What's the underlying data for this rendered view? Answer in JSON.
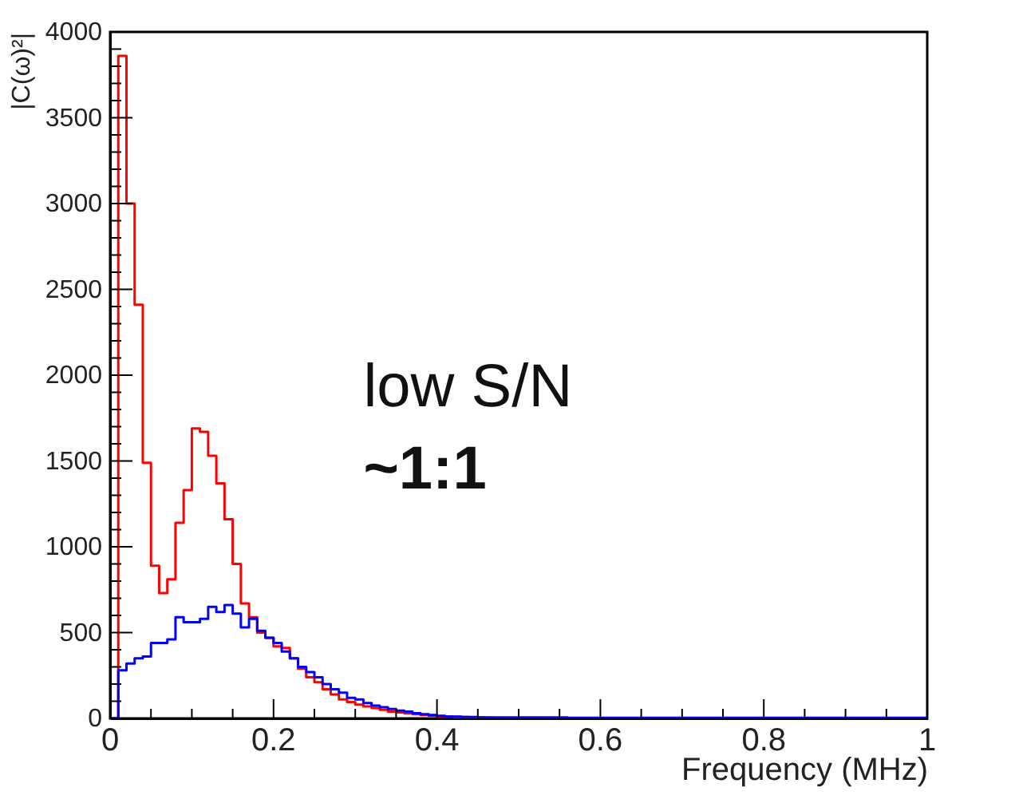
{
  "chart_data": {
    "type": "histogram",
    "xlabel": "Frequency (MHz)",
    "ylabel": "|C(ω)²|",
    "annotations": [
      "low S/N",
      "~1:1"
    ],
    "bins": [
      0,
      0.01,
      0.02,
      0.03,
      0.04,
      0.05,
      0.06,
      0.07,
      0.08,
      0.09,
      0.1,
      0.11,
      0.12,
      0.13,
      0.14,
      0.15,
      0.16,
      0.17,
      0.18,
      0.19,
      0.2,
      0.21,
      0.22,
      0.23,
      0.24,
      0.25,
      0.26,
      0.27,
      0.28,
      0.29,
      0.3,
      0.31,
      0.32,
      0.33,
      0.34,
      0.35,
      0.36,
      0.37,
      0.38,
      0.39,
      0.4,
      0.41,
      0.42,
      0.43,
      0.44,
      0.45,
      0.46,
      0.47,
      0.48,
      0.49,
      0.5,
      0.51,
      0.52,
      0.53,
      0.54,
      0.55,
      0.56,
      0.57,
      0.58,
      0.59,
      0.6,
      0.61,
      0.62,
      0.63,
      0.64,
      0.65,
      0.66,
      0.67,
      0.68,
      0.69,
      0.7,
      0.71,
      0.72,
      0.73,
      0.74,
      0.75,
      0.76,
      0.77,
      0.78,
      0.79,
      0.8,
      0.81,
      0.82,
      0.83,
      0.84,
      0.85,
      0.86,
      0.87,
      0.88,
      0.89,
      0.9,
      0.91,
      0.92,
      0.93,
      0.94,
      0.95,
      0.96,
      0.97,
      0.98,
      0.99,
      1
    ],
    "series": [
      {
        "color": "#ff0000",
        "values": [
          0,
          3860,
          3000,
          2410,
          1490,
          890,
          730,
          810,
          1140,
          1330,
          1690,
          1670,
          1530,
          1370,
          1160,
          900,
          670,
          590,
          500,
          470,
          420,
          410,
          350,
          290,
          240,
          210,
          170,
          140,
          110,
          95,
          80,
          70,
          60,
          50,
          40,
          35,
          30,
          25,
          20,
          15,
          12,
          10,
          8,
          8,
          7,
          6,
          6,
          5,
          5,
          5,
          5,
          5,
          5,
          5,
          5,
          5,
          0,
          0,
          0,
          0,
          0,
          0,
          0,
          0,
          0,
          0,
          0,
          0,
          0,
          0,
          0,
          0,
          0,
          0,
          0,
          0,
          0,
          0,
          0,
          0,
          0,
          0,
          0,
          0,
          0,
          0,
          0,
          0,
          0,
          0,
          0,
          0,
          0,
          0,
          0,
          0,
          0,
          0,
          0,
          0
        ]
      },
      {
        "color": "#0000ff",
        "values": [
          0,
          280,
          320,
          350,
          360,
          440,
          440,
          460,
          590,
          560,
          560,
          580,
          650,
          620,
          660,
          610,
          530,
          580,
          510,
          470,
          440,
          390,
          350,
          300,
          270,
          240,
          200,
          170,
          150,
          120,
          110,
          90,
          75,
          65,
          55,
          45,
          40,
          30,
          25,
          20,
          15,
          10,
          10,
          8,
          8,
          6,
          5,
          5,
          5,
          5,
          5,
          5,
          5,
          5,
          5,
          5,
          3,
          3,
          3,
          3,
          3,
          3,
          3,
          3,
          3,
          3,
          3,
          3,
          3,
          3,
          3,
          3,
          3,
          3,
          3,
          3,
          3,
          3,
          3,
          3,
          3,
          3,
          3,
          3,
          3,
          3,
          3,
          3,
          3,
          3,
          3,
          3,
          3,
          3,
          3,
          3,
          3,
          3,
          3,
          3
        ]
      }
    ],
    "xlim": [
      0,
      1
    ],
    "xticks": [
      0,
      {
        "value": 0.05,
        "label": null
      },
      {
        "value": 0.1,
        "label": null
      },
      {
        "value": 0.15,
        "label": null
      },
      0.2,
      {
        "value": 0.25,
        "label": null
      },
      {
        "value": 0.3,
        "label": null
      },
      {
        "value": 0.35,
        "label": null
      },
      0.4,
      {
        "value": 0.45,
        "label": null
      },
      {
        "value": 0.5,
        "label": null
      },
      {
        "value": 0.55,
        "label": null
      },
      0.6,
      {
        "value": 0.65,
        "label": null
      },
      {
        "value": 0.7,
        "label": null
      },
      {
        "value": 0.75,
        "label": null
      },
      0.8,
      {
        "value": 0.85,
        "label": null
      },
      {
        "value": 0.9,
        "label": null
      },
      {
        "value": 0.95,
        "label": null
      },
      1
    ],
    "ylim": [
      0,
      4000
    ],
    "yticks": [
      0,
      {
        "value": 100,
        "label": null
      },
      {
        "value": 200,
        "label": null
      },
      {
        "value": 300,
        "label": null
      },
      {
        "value": 400,
        "label": null
      },
      500,
      {
        "value": 600,
        "label": null
      },
      {
        "value": 700,
        "label": null
      },
      {
        "value": 800,
        "label": null
      },
      {
        "value": 900,
        "label": null
      },
      1000,
      {
        "value": 1100,
        "label": null
      },
      {
        "value": 1200,
        "label": null
      },
      {
        "value": 1300,
        "label": null
      },
      {
        "value": 1400,
        "label": null
      },
      1500,
      {
        "value": 1600,
        "label": null
      },
      {
        "value": 1700,
        "label": null
      },
      {
        "value": 1800,
        "label": null
      },
      {
        "value": 1900,
        "label": null
      },
      2000,
      {
        "value": 2100,
        "label": null
      },
      {
        "value": 2200,
        "label": null
      },
      {
        "value": 2300,
        "label": null
      },
      {
        "value": 2400,
        "label": null
      },
      2500,
      {
        "value": 2600,
        "label": null
      },
      {
        "value": 2700,
        "label": null
      },
      {
        "value": 2800,
        "label": null
      },
      {
        "value": 2900,
        "label": null
      },
      3000,
      {
        "value": 3100,
        "label": null
      },
      {
        "value": 3200,
        "label": null
      },
      {
        "value": 3300,
        "label": null
      },
      {
        "value": 3400,
        "label": null
      },
      3500,
      {
        "value": 3600,
        "label": null
      },
      {
        "value": 3700,
        "label": null
      },
      {
        "value": 3800,
        "label": null
      },
      {
        "value": 3900,
        "label": null
      },
      4000
    ],
    "grid": false
  }
}
